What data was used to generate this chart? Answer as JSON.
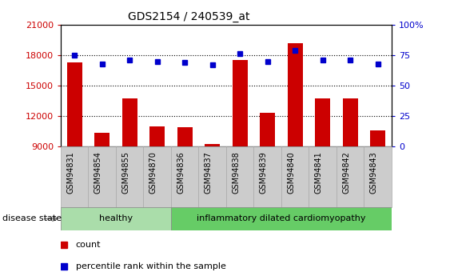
{
  "title": "GDS2154 / 240539_at",
  "samples": [
    "GSM94831",
    "GSM94854",
    "GSM94855",
    "GSM94870",
    "GSM94836",
    "GSM94837",
    "GSM94838",
    "GSM94839",
    "GSM94840",
    "GSM94841",
    "GSM94842",
    "GSM94843"
  ],
  "counts": [
    17300,
    10300,
    13700,
    11000,
    10900,
    9200,
    17500,
    12300,
    19200,
    13700,
    13700,
    10600
  ],
  "percentile": [
    75,
    68,
    71,
    70,
    69,
    67,
    76,
    70,
    79,
    71,
    71,
    68
  ],
  "healthy_count": 4,
  "ylim_left": [
    9000,
    21000
  ],
  "ylim_right": [
    0,
    100
  ],
  "yticks_left": [
    9000,
    12000,
    15000,
    18000,
    21000
  ],
  "yticks_right": [
    0,
    25,
    50,
    75,
    100
  ],
  "bar_color": "#cc0000",
  "dot_color": "#0000cc",
  "bar_width": 0.55,
  "healthy_label": "healthy",
  "disease_label": "inflammatory dilated cardiomyopathy",
  "healthy_bg": "#aaddaa",
  "disease_bg": "#66cc66",
  "tick_label_bg": "#cccccc",
  "tick_label_edge": "#aaaaaa",
  "label_count": "count",
  "label_percentile": "percentile rank within the sample",
  "disease_state_label": "disease state",
  "dotted_line_color": "#000000",
  "grid_lines": [
    12000,
    15000,
    18000
  ],
  "left_axis_color": "#cc0000",
  "right_axis_color": "#0000cc",
  "right_tick_labels": [
    "0",
    "25",
    "50",
    "75",
    "100%"
  ]
}
